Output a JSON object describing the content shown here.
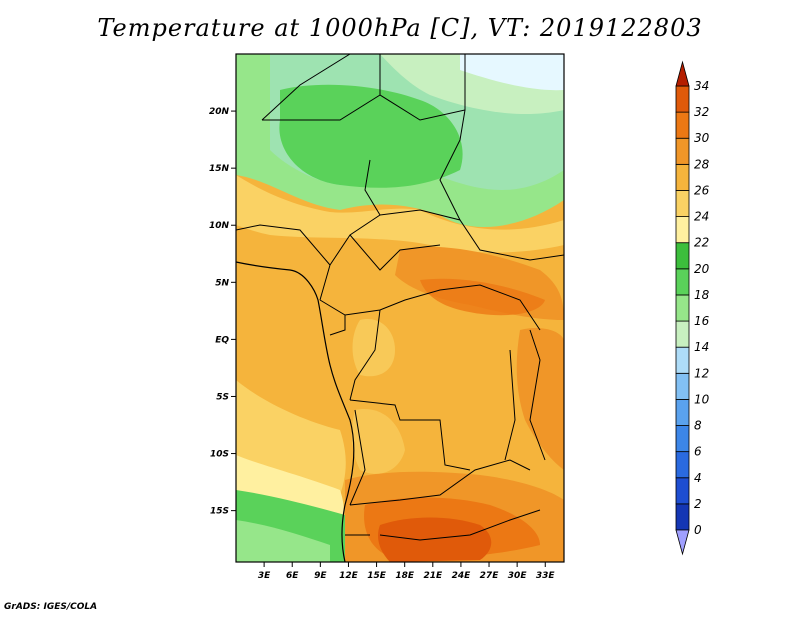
{
  "title": "Temperature at 1000hPa [C], VT: 2019122803",
  "footer": "GrADS: IGES/COLA",
  "map": {
    "variable": "Temperature at 1000hPa",
    "units": "C",
    "valid_time": "2019122803",
    "lat_labels": [
      "20N",
      "15N",
      "10N",
      "5N",
      "EQ",
      "5S",
      "10S",
      "15S"
    ],
    "lat_values": [
      20,
      15,
      10,
      5,
      0,
      -5,
      -10,
      -15
    ],
    "lon_labels": [
      "3E",
      "6E",
      "9E",
      "12E",
      "15E",
      "18E",
      "21E",
      "24E",
      "27E",
      "30E",
      "33E"
    ],
    "lon_values": [
      3,
      6,
      9,
      12,
      15,
      18,
      21,
      24,
      27,
      30,
      33
    ],
    "lon_range": [
      0,
      35
    ],
    "lat_range": [
      -19.5,
      25
    ]
  },
  "colorbar": {
    "levels": [
      "0",
      "2",
      "4",
      "6",
      "8",
      "10",
      "12",
      "14",
      "16",
      "18",
      "20",
      "22",
      "24",
      "26",
      "28",
      "30",
      "32",
      "34"
    ],
    "colors": [
      "#a0a0ff",
      "#0a0a78",
      "#1436b4",
      "#1e4ed2",
      "#2a6ae0",
      "#3c86e8",
      "#5aa2ee",
      "#82c0f4",
      "#aedcf8",
      "#c8f0c0",
      "#96e68a",
      "#5ad25a",
      "#3cbe3c",
      "#fff0a0",
      "#fad264",
      "#f5b43c",
      "#f09628",
      "#ec7814",
      "#e05a0a",
      "#d23200",
      "#b41e00"
    ]
  }
}
